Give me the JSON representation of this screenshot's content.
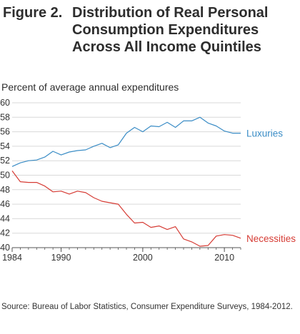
{
  "header": {
    "figure_number": "Figure 2.",
    "title": "Distribution of Real Personal Consumption Expenditures Across All Income Quintiles"
  },
  "footer": {
    "source": "Source:  Bureau of Labor Statistics, Consumer Expenditure Surveys, 1984-2012."
  },
  "chart_data": {
    "type": "line",
    "title": "Distribution of Real Personal Consumption Expenditures Across All Income Quintiles",
    "ylabel": "Percent of average annual expenditures",
    "xlabel": "",
    "xlim": [
      1984,
      2012
    ],
    "ylim": [
      40,
      60
    ],
    "x_ticks": [
      1984,
      1990,
      2000,
      2010
    ],
    "y_ticks": [
      40,
      42,
      44,
      46,
      48,
      50,
      52,
      54,
      56,
      58,
      60
    ],
    "grid": "horizontal",
    "x": [
      1984,
      1985,
      1986,
      1987,
      1988,
      1989,
      1990,
      1991,
      1992,
      1993,
      1994,
      1995,
      1996,
      1997,
      1998,
      1999,
      2000,
      2001,
      2002,
      2003,
      2004,
      2005,
      2006,
      2007,
      2008,
      2009,
      2010,
      2011,
      2012
    ],
    "series": [
      {
        "name": "Luxuries",
        "color": "#3b8dc6",
        "values": [
          51.2,
          51.7,
          52.0,
          52.1,
          52.5,
          53.3,
          52.8,
          53.2,
          53.4,
          53.5,
          54.0,
          54.4,
          53.8,
          54.2,
          55.8,
          56.6,
          56.0,
          56.8,
          56.7,
          57.3,
          56.6,
          57.5,
          57.5,
          58.0,
          57.2,
          56.8,
          56.1,
          55.8,
          55.8
        ]
      },
      {
        "name": "Necessities",
        "color": "#d63c35",
        "values": [
          50.6,
          49.1,
          49.0,
          49.0,
          48.5,
          47.7,
          47.8,
          47.4,
          47.8,
          47.6,
          46.9,
          46.4,
          46.2,
          46.0,
          44.6,
          43.4,
          43.5,
          42.8,
          43.0,
          42.5,
          42.9,
          41.2,
          40.8,
          40.2,
          40.3,
          41.6,
          41.8,
          41.7,
          41.3
        ]
      }
    ]
  }
}
